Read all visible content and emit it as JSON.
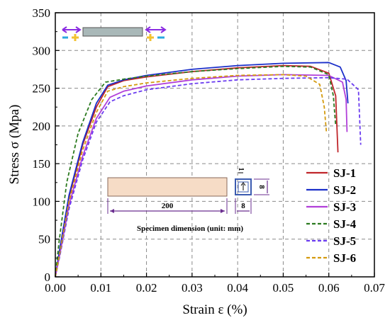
{
  "chart_data": {
    "type": "line",
    "xlabel": "Strain ε  (%)",
    "ylabel": "Stress σ (Mpa)",
    "xlim": [
      0,
      0.07
    ],
    "ylim": [
      0,
      350
    ],
    "x_ticks": [
      "0.00",
      "0.01",
      "0.02",
      "0.03",
      "0.04",
      "0.05",
      "0.06",
      "0.07"
    ],
    "y_ticks": [
      "0",
      "50",
      "100",
      "150",
      "200",
      "250",
      "300",
      "350"
    ],
    "grid": true,
    "legend_position": "bottom-right",
    "series": [
      {
        "name": "SJ-1",
        "color": "#c0262b",
        "dashed": false,
        "points": [
          [
            0,
            0
          ],
          [
            0.001,
            35
          ],
          [
            0.003,
            105
          ],
          [
            0.006,
            175
          ],
          [
            0.009,
            225
          ],
          [
            0.0115,
            252
          ],
          [
            0.015,
            260
          ],
          [
            0.02,
            265
          ],
          [
            0.03,
            272
          ],
          [
            0.04,
            277
          ],
          [
            0.05,
            280
          ],
          [
            0.056,
            279
          ],
          [
            0.06,
            270
          ],
          [
            0.0615,
            240
          ],
          [
            0.062,
            165
          ]
        ]
      },
      {
        "name": "SJ-2",
        "color": "#1b2fc9",
        "dashed": false,
        "points": [
          [
            0,
            0
          ],
          [
            0.001,
            38
          ],
          [
            0.003,
            108
          ],
          [
            0.006,
            178
          ],
          [
            0.009,
            230
          ],
          [
            0.0115,
            254
          ],
          [
            0.015,
            261
          ],
          [
            0.02,
            267
          ],
          [
            0.03,
            275
          ],
          [
            0.04,
            280
          ],
          [
            0.05,
            283
          ],
          [
            0.06,
            284
          ],
          [
            0.0625,
            278
          ],
          [
            0.0638,
            260
          ],
          [
            0.0642,
            230
          ]
        ]
      },
      {
        "name": "SJ-3",
        "color": "#b13fd9",
        "dashed": false,
        "points": [
          [
            0,
            0
          ],
          [
            0.001,
            30
          ],
          [
            0.003,
            95
          ],
          [
            0.006,
            160
          ],
          [
            0.009,
            210
          ],
          [
            0.012,
            238
          ],
          [
            0.015,
            246
          ],
          [
            0.02,
            253
          ],
          [
            0.03,
            261
          ],
          [
            0.04,
            266
          ],
          [
            0.05,
            268
          ],
          [
            0.06,
            267
          ],
          [
            0.063,
            258
          ],
          [
            0.0638,
            235
          ],
          [
            0.064,
            192
          ]
        ]
      },
      {
        "name": "SJ-4",
        "color": "#2b7a1f",
        "dashed": true,
        "points": [
          [
            0,
            0
          ],
          [
            0.0008,
            45
          ],
          [
            0.0025,
            125
          ],
          [
            0.005,
            190
          ],
          [
            0.008,
            235
          ],
          [
            0.011,
            258
          ],
          [
            0.015,
            262
          ],
          [
            0.02,
            266
          ],
          [
            0.03,
            272
          ],
          [
            0.04,
            276
          ],
          [
            0.05,
            279
          ],
          [
            0.056,
            278
          ],
          [
            0.06,
            268
          ],
          [
            0.061,
            240
          ],
          [
            0.0615,
            200
          ]
        ]
      },
      {
        "name": "SJ-5",
        "color": "#6b3cf0",
        "dashed": true,
        "points": [
          [
            0,
            0
          ],
          [
            0.001,
            28
          ],
          [
            0.003,
            90
          ],
          [
            0.006,
            155
          ],
          [
            0.009,
            205
          ],
          [
            0.012,
            232
          ],
          [
            0.015,
            240
          ],
          [
            0.02,
            248
          ],
          [
            0.03,
            256
          ],
          [
            0.04,
            261
          ],
          [
            0.05,
            263
          ],
          [
            0.06,
            264
          ],
          [
            0.064,
            262
          ],
          [
            0.0665,
            248
          ],
          [
            0.067,
            175
          ]
        ]
      },
      {
        "name": "SJ-6",
        "color": "#d49a0e",
        "dashed": true,
        "points": [
          [
            0,
            0
          ],
          [
            0.001,
            32
          ],
          [
            0.003,
            100
          ],
          [
            0.006,
            168
          ],
          [
            0.009,
            218
          ],
          [
            0.0115,
            246
          ],
          [
            0.015,
            252
          ],
          [
            0.02,
            257
          ],
          [
            0.03,
            263
          ],
          [
            0.04,
            267
          ],
          [
            0.05,
            268
          ],
          [
            0.055,
            266
          ],
          [
            0.058,
            255
          ],
          [
            0.059,
            225
          ],
          [
            0.0595,
            190
          ]
        ]
      }
    ],
    "annotations": {
      "specimen_length": "200",
      "specimen_width": "8",
      "section_thickness": "1",
      "section_height": "8",
      "caption": "Specimen dimension (unit: mm)"
    }
  },
  "colors": {
    "axis": "#000000",
    "grid": "#8a8a8a",
    "specimen_fill": "#f6dcc6",
    "bar_fill": "#a9b8b8",
    "dimension_line": "#6a2d8f",
    "arrow": "#8a2be2",
    "cross": "#f2c230",
    "dash_marker": "#29a8e0"
  }
}
